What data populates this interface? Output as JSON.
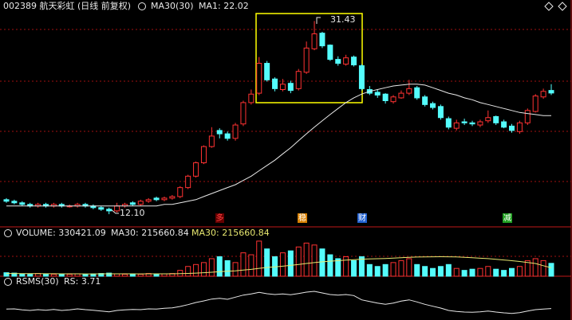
{
  "chart_data": {
    "type": "candlestick",
    "title": "002389 航天彩虹 (日线 前复权)",
    "indicator_label": "MA30(30)",
    "last_label": "MA1: 22.02",
    "high_label": "31.43",
    "low_label": "12.10",
    "event_labels": [
      "多",
      "稳",
      "财",
      "减"
    ],
    "volume_title": "VOLUME: 330421.09",
    "volume_ma_label": "MA30: 215660.84",
    "volume_ma_label2": "MA30: 215660.84",
    "rs_title": "RSMS(30)",
    "rs_label": "RS: 3.71",
    "log_scale": true,
    "ylim": [
      11.5,
      33
    ],
    "volume_ylim": [
      0,
      1000000
    ],
    "rs_ylim": [
      0,
      12
    ],
    "up_color": "#ff3232",
    "down_color": "#54fcfc",
    "ma_color": "#e8e8e8",
    "volume_ma_color": "#e8e870",
    "rs_color": "#e8e8e8",
    "open": [
      13.0,
      12.9,
      12.8,
      12.7,
      12.6,
      12.7,
      12.6,
      12.7,
      12.6,
      12.6,
      12.7,
      12.6,
      12.5,
      12.4,
      12.3,
      12.6,
      12.8,
      12.7,
      12.9,
      13.1,
      13.0,
      13.1,
      13.2,
      13.8,
      14.6,
      15.6,
      16.9,
      18.3,
      18.0,
      17.6,
      18.9,
      21.0,
      22.0,
      25.5,
      23.6,
      22.4,
      23.1,
      22.5,
      24.4,
      27.4,
      29.6,
      27.9,
      26.0,
      25.4,
      26.3,
      25.2,
      22.4,
      22.1,
      21.9,
      21.1,
      21.5,
      22.0,
      22.6,
      21.6,
      20.9,
      20.6,
      19.4,
      18.5,
      19.1,
      19.0,
      18.8,
      19.2,
      19.6,
      19.1,
      18.7,
      18.2,
      19.0,
      20.1,
      21.6,
      22.3
    ],
    "high": [
      13.1,
      13.0,
      12.9,
      12.8,
      12.8,
      12.8,
      12.8,
      12.8,
      12.7,
      12.8,
      12.8,
      12.7,
      12.6,
      12.5,
      12.8,
      12.8,
      12.9,
      13.0,
      13.1,
      13.2,
      13.2,
      13.3,
      13.9,
      14.7,
      15.7,
      17.0,
      18.6,
      18.5,
      18.2,
      19.0,
      21.2,
      22.4,
      26.3,
      25.8,
      23.8,
      23.6,
      23.4,
      24.8,
      28.4,
      31.43,
      29.8,
      28.0,
      26.4,
      26.6,
      26.5,
      25.4,
      22.8,
      22.4,
      22.0,
      21.8,
      22.3,
      23.5,
      22.8,
      21.8,
      21.1,
      20.8,
      19.6,
      19.3,
      19.4,
      19.2,
      19.3,
      20.2,
      19.7,
      19.3,
      18.9,
      19.2,
      20.4,
      21.9,
      22.5,
      23.0
    ],
    "low": [
      12.8,
      12.7,
      12.6,
      12.5,
      12.5,
      12.5,
      12.5,
      12.5,
      12.5,
      12.5,
      12.5,
      12.4,
      12.3,
      12.1,
      12.2,
      12.5,
      12.6,
      12.6,
      12.8,
      12.9,
      12.9,
      13.0,
      13.1,
      13.7,
      14.5,
      15.5,
      16.8,
      17.6,
      17.4,
      17.4,
      18.7,
      20.8,
      21.8,
      23.3,
      22.2,
      22.2,
      22.0,
      22.3,
      24.2,
      27.2,
      27.5,
      25.8,
      25.2,
      25.2,
      25.1,
      22.3,
      21.8,
      21.5,
      20.9,
      20.9,
      21.4,
      21.8,
      21.3,
      20.6,
      20.3,
      19.3,
      18.4,
      18.3,
      18.8,
      18.7,
      18.6,
      19.0,
      18.8,
      18.5,
      18.1,
      18.0,
      18.8,
      20.0,
      21.4,
      21.8
    ],
    "close": [
      12.9,
      12.8,
      12.7,
      12.6,
      12.7,
      12.6,
      12.7,
      12.6,
      12.6,
      12.7,
      12.6,
      12.5,
      12.4,
      12.3,
      12.6,
      12.7,
      12.7,
      12.9,
      13.0,
      13.0,
      13.1,
      13.2,
      13.8,
      14.6,
      15.6,
      16.9,
      17.8,
      18.0,
      17.6,
      18.8,
      21.0,
      21.9,
      25.5,
      23.5,
      22.5,
      23.0,
      22.3,
      24.5,
      27.5,
      29.5,
      27.8,
      26.0,
      25.5,
      26.2,
      25.3,
      22.5,
      22.0,
      21.8,
      21.2,
      21.6,
      22.0,
      22.5,
      21.5,
      20.8,
      20.5,
      19.5,
      18.6,
      19.0,
      19.0,
      18.9,
      19.1,
      19.5,
      19.0,
      18.6,
      18.3,
      19.0,
      20.2,
      21.7,
      22.2,
      22.02
    ],
    "ma30": [
      12.6,
      12.6,
      12.6,
      12.6,
      12.6,
      12.6,
      12.6,
      12.6,
      12.6,
      12.6,
      12.6,
      12.6,
      12.6,
      12.6,
      12.6,
      12.6,
      12.6,
      12.6,
      12.6,
      12.6,
      12.7,
      12.7,
      12.8,
      12.9,
      13.0,
      13.2,
      13.4,
      13.6,
      13.8,
      14.0,
      14.3,
      14.6,
      15.0,
      15.4,
      15.8,
      16.3,
      16.8,
      17.4,
      18.0,
      18.6,
      19.2,
      19.8,
      20.4,
      21.0,
      21.5,
      21.9,
      22.2,
      22.4,
      22.6,
      22.8,
      22.9,
      23.0,
      23.0,
      22.9,
      22.6,
      22.3,
      22.0,
      21.8,
      21.5,
      21.3,
      21.0,
      20.8,
      20.6,
      20.4,
      20.2,
      20.0,
      19.9,
      19.8,
      19.7,
      19.7
    ],
    "volume": [
      90000,
      80000,
      60000,
      50000,
      70000,
      60000,
      50000,
      60000,
      50000,
      60000,
      50000,
      60000,
      70000,
      80000,
      60000,
      50000,
      60000,
      50000,
      70000,
      60000,
      60000,
      70000,
      150000,
      250000,
      300000,
      350000,
      450000,
      500000,
      400000,
      350000,
      600000,
      550000,
      900000,
      700000,
      500000,
      600000,
      650000,
      750000,
      850000,
      800000,
      700000,
      550000,
      450000,
      500000,
      400000,
      500000,
      300000,
      250000,
      300000,
      350000,
      400000,
      450000,
      300000,
      250000,
      200000,
      250000,
      300000,
      200000,
      150000,
      180000,
      200000,
      250000,
      180000,
      150000,
      200000,
      250000,
      400000,
      450000,
      400000,
      330421.09
    ],
    "volume_ma30": [
      70000,
      70000,
      68000,
      66000,
      65000,
      64000,
      63000,
      62000,
      61000,
      61000,
      60000,
      60000,
      61000,
      62000,
      62000,
      61000,
      61000,
      60000,
      61000,
      61000,
      61000,
      62000,
      66000,
      72000,
      80000,
      89000,
      102000,
      116000,
      128000,
      139000,
      158000,
      175000,
      203000,
      225000,
      240000,
      258000,
      277000,
      300000,
      326000,
      350000,
      370000,
      385000,
      397000,
      412000,
      423000,
      436000,
      443000,
      449000,
      456000,
      465000,
      475000,
      486000,
      492000,
      496000,
      497000,
      499000,
      498000,
      494000,
      485000,
      474000,
      462000,
      450000,
      434000,
      416000,
      398000,
      378000,
      354000,
      326000,
      270000,
      215660.84
    ],
    "rs": [
      3.5,
      3.6,
      3.2,
      3.0,
      3.3,
      3.1,
      3.4,
      3.0,
      3.2,
      3.6,
      3.3,
      3.1,
      2.8,
      2.5,
      3.0,
      3.2,
      3.4,
      3.3,
      3.6,
      3.5,
      3.8,
      4.0,
      4.5,
      5.2,
      6.0,
      6.6,
      7.3,
      7.6,
      7.2,
      8.0,
      8.8,
      9.2,
      9.8,
      9.3,
      9.0,
      9.2,
      8.9,
      9.4,
      9.9,
      10.2,
      9.6,
      9.0,
      8.8,
      9.0,
      8.6,
      7.0,
      6.4,
      5.8,
      5.3,
      5.8,
      6.5,
      7.0,
      6.2,
      5.3,
      4.6,
      3.9,
      3.0,
      2.6,
      2.4,
      2.3,
      2.5,
      2.8,
      2.4,
      2.1,
      1.9,
      2.2,
      2.8,
      3.3,
      3.5,
      3.71
    ]
  }
}
